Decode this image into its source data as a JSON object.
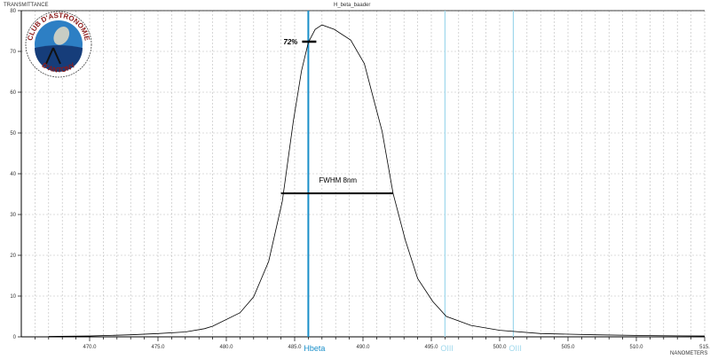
{
  "chart_data": {
    "type": "line",
    "title": "H_beta_baader",
    "ylabel": "TRANSMITTANCE",
    "xlabel": "NANOMETERS",
    "xlim": [
      465,
      515
    ],
    "ylim": [
      0,
      80
    ],
    "grid": true,
    "x_ticks": [
      470,
      475,
      480,
      485,
      490,
      495,
      500,
      505,
      510,
      515
    ],
    "x_tick_labels": [
      "470.0",
      "475.0",
      "480.0",
      "485.0",
      "490.0",
      "495.0",
      "500.0",
      "505.0",
      "510.0",
      "515."
    ],
    "y_ticks": [
      0,
      10,
      20,
      30,
      40,
      50,
      60,
      70,
      80
    ],
    "y_tick_labels": [
      "0",
      "10",
      "20",
      "30",
      "40",
      "50",
      "60",
      "70",
      "80"
    ],
    "series": [
      {
        "name": "H_beta_baader",
        "color": "#000000",
        "x": [
          467,
          470,
          473,
          475,
          477,
          478.4,
          479.0,
          481.0,
          482.0,
          483.1,
          484.1,
          484.9,
          485.5,
          486.0,
          486.5,
          487.0,
          487.9,
          489.1,
          490.1,
          490.7,
          491.4,
          492.2,
          493.1,
          494.0,
          495.1,
          496.1,
          497.9,
          500,
          503,
          507,
          511,
          515
        ],
        "y": [
          0.1,
          0.2,
          0.5,
          0.8,
          1.2,
          2.0,
          2.6,
          5.9,
          9.8,
          18.5,
          33.3,
          52.8,
          65.2,
          72.2,
          75.4,
          76.5,
          75.4,
          72.8,
          67.0,
          59.3,
          50.4,
          35.2,
          23.7,
          14.3,
          8.7,
          5.0,
          2.8,
          1.6,
          0.8,
          0.5,
          0.3,
          0.2
        ]
      }
    ],
    "reference_lines": [
      {
        "label": "Hbeta",
        "x": 486.0,
        "color": "#1a8fc9"
      },
      {
        "label": "OIII",
        "x": 496.0,
        "color": "#9fd8ec"
      },
      {
        "label": "OIII",
        "x": 501.0,
        "color": "#9fd8ec"
      }
    ],
    "annotations": [
      {
        "text": "72%",
        "x": 486.0,
        "y": 72.4
      },
      {
        "text": "FWHM 8nm",
        "x_start": 484.0,
        "x_end": 492.2,
        "y": 35.2
      }
    ]
  },
  "logo": {
    "top_text": "CLUB D'ASTRONOMIE",
    "bottom_text": "D'ANTONY"
  }
}
